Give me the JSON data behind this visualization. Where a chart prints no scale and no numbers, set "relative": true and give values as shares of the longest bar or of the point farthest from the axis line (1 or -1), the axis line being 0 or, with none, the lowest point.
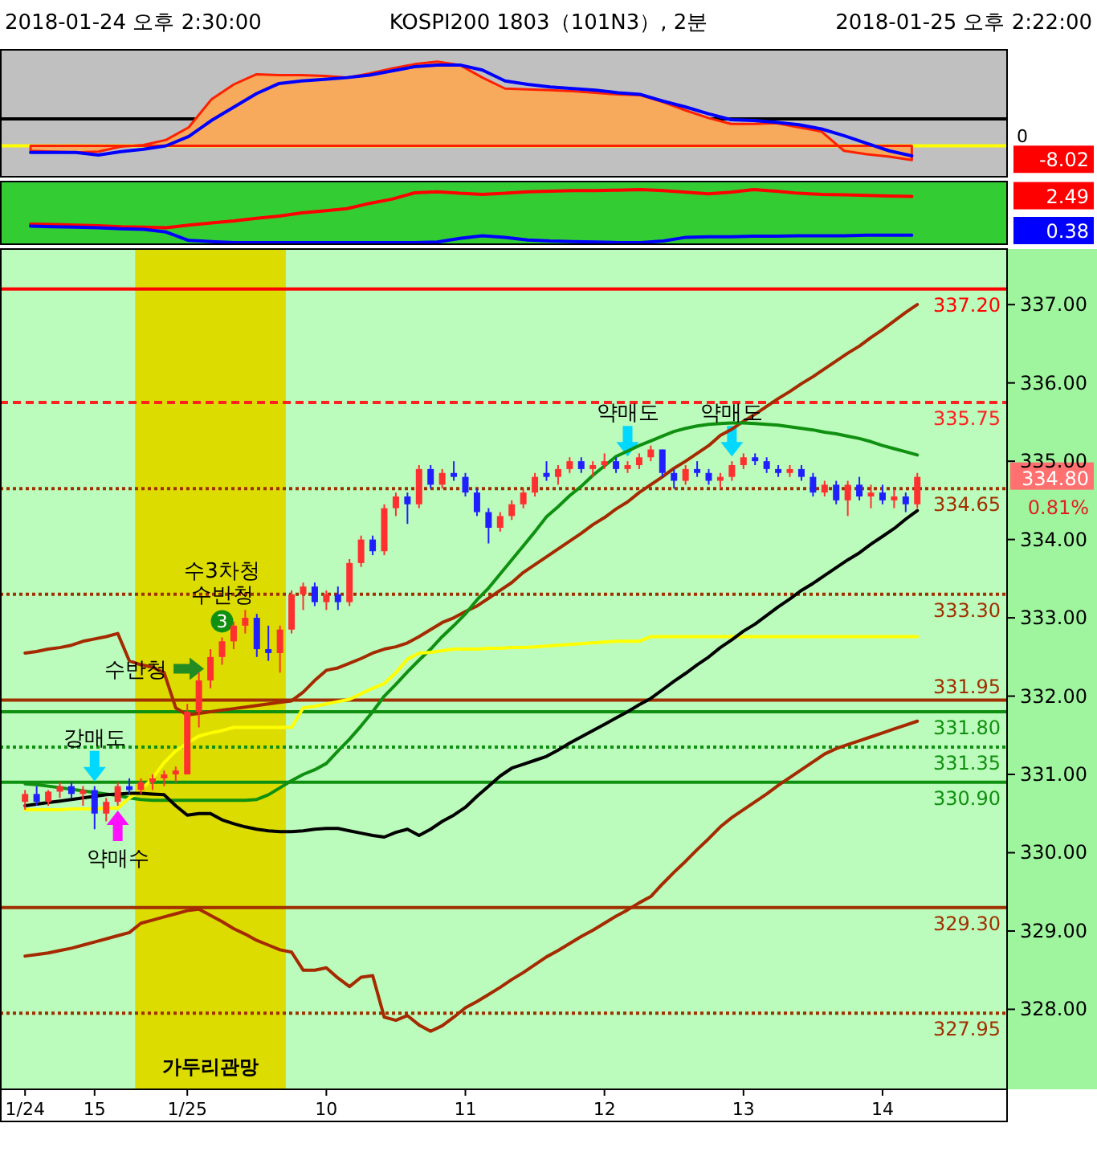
{
  "chart_data": [
    {
      "type": "line",
      "relative": true,
      "title": "KOSPI200 1803（101N3）, 2분",
      "annotations": [
        "2018-01-24 오후 2:30:00",
        "2018-01-25 오후 2:22:00",
        "-8.02"
      ],
      "categories": [
        null,
        null,
        null,
        null,
        null,
        null,
        null,
        null,
        null,
        null,
        null,
        null,
        null,
        null,
        null,
        null,
        null,
        null,
        null,
        null,
        null,
        null,
        null,
        null,
        null,
        null,
        null,
        null,
        null,
        null,
        null,
        null,
        null,
        null,
        null,
        null,
        null,
        null,
        null,
        null
      ],
      "series": [
        {
          "type": "area",
          "color": "#f7a95c",
          "values": [
            -0.06,
            -0.07,
            -0.08,
            -0.07,
            -0.01,
            0.01,
            0.07,
            0.22,
            0.55,
            0.73,
            0.85,
            0.84,
            0.84,
            0.83,
            0.81,
            0.86,
            0.92,
            0.97,
            1,
            0.96,
            0.81,
            0.68,
            0.67,
            0.66,
            0.65,
            0.63,
            0.61,
            0.6,
            0.52,
            0.42,
            0.33,
            0.26,
            0.26,
            0.27,
            0.22,
            0.17,
            -0.06,
            -0.1,
            -0.13,
            -0.17
          ]
        },
        {
          "color": "#0000ff",
          "values": [
            -0.08,
            -0.08,
            -0.08,
            -0.11,
            -0.07,
            -0.04,
            0,
            0.11,
            0.3,
            0.46,
            0.62,
            0.74,
            0.77,
            0.79,
            0.81,
            0.84,
            0.89,
            0.94,
            0.96,
            0.96,
            0.9,
            0.77,
            0.73,
            0.7,
            0.68,
            0.66,
            0.63,
            0.61,
            0.53,
            0.46,
            0.38,
            0.31,
            0.3,
            0.28,
            0.25,
            0.2,
            0.12,
            0.03,
            -0.06,
            -0.12
          ]
        }
      ],
      "ref_lines": [
        {
          "axis": "y",
          "value": 0,
          "label": "0",
          "color": "#ffff00"
        },
        {
          "axis": "y",
          "value": 0.32,
          "color": "#000000"
        }
      ]
    },
    {
      "type": "line",
      "relative": true,
      "annotations": [
        "2.49",
        "0.38"
      ],
      "categories": [
        null,
        null,
        null,
        null,
        null,
        null,
        null,
        null,
        null,
        null,
        null,
        null,
        null,
        null,
        null,
        null,
        null,
        null,
        null,
        null,
        null,
        null,
        null,
        null,
        null,
        null,
        null,
        null,
        null,
        null,
        null,
        null,
        null,
        null,
        null,
        null,
        null,
        null,
        null,
        null
      ],
      "series": [
        {
          "color": "#ff0000",
          "values": [
            0.35,
            0.34,
            0.33,
            0.32,
            0.3,
            0.29,
            0.28,
            0.33,
            0.37,
            0.41,
            0.46,
            0.5,
            0.56,
            0.6,
            0.64,
            0.74,
            0.82,
            0.94,
            0.96,
            0.93,
            0.91,
            0.93,
            0.96,
            0.97,
            0.98,
            0.98,
            0.99,
            1,
            0.98,
            0.95,
            0.92,
            0.95,
            1,
            0.97,
            0.93,
            0.91,
            0.9,
            0.89,
            0.88,
            0.87
          ]
        },
        {
          "color": "#0000ff",
          "values": [
            0.31,
            0.3,
            0.29,
            0.28,
            0.26,
            0.25,
            0.2,
            0.04,
            0.02,
            0,
            0,
            0,
            0,
            0,
            0,
            0,
            0,
            0,
            0.01,
            0.08,
            0.13,
            0.1,
            0.05,
            0.03,
            0.02,
            0.01,
            0,
            0,
            0.03,
            0.1,
            0.11,
            0.11,
            0.12,
            0.12,
            0.13,
            0.13,
            0.13,
            0.14,
            0.14,
            0.14
          ]
        }
      ]
    },
    {
      "type": "candlestick",
      "ylim": [
        327.04,
        337.71
      ],
      "categories": [
        "1/24",
        null,
        null,
        null,
        null,
        null,
        "15",
        null,
        null,
        null,
        null,
        null,
        null,
        null,
        "1/25",
        null,
        null,
        null,
        null,
        null,
        null,
        null,
        null,
        null,
        null,
        null,
        "10",
        null,
        null,
        null,
        null,
        null,
        null,
        null,
        null,
        null,
        null,
        null,
        "11",
        null,
        null,
        null,
        null,
        null,
        null,
        null,
        null,
        null,
        null,
        null,
        "12",
        null,
        null,
        null,
        null,
        null,
        null,
        null,
        null,
        null,
        null,
        null,
        "13",
        null,
        null,
        null,
        null,
        null,
        null,
        null,
        null,
        null,
        null,
        null,
        "14",
        null,
        null,
        null
      ],
      "yticks": [
        {
          "value": 328,
          "label": "328.00"
        },
        {
          "value": 329,
          "label": "329.00"
        },
        {
          "value": 330,
          "label": "330.00"
        },
        {
          "value": 331,
          "label": "331.00"
        },
        {
          "value": 332,
          "label": "332.00"
        },
        {
          "value": 333,
          "label": "333.00"
        },
        {
          "value": 334,
          "label": "334.00"
        },
        {
          "value": 335,
          "label": "335.00"
        },
        {
          "value": 336,
          "label": "336.00"
        },
        {
          "value": 337,
          "label": "337.00"
        }
      ],
      "ohlc": [
        [
          330.65,
          330.8,
          330.55,
          330.75
        ],
        [
          330.75,
          330.85,
          330.6,
          330.65
        ],
        [
          330.65,
          330.8,
          330.6,
          330.78
        ],
        [
          330.78,
          330.9,
          330.7,
          330.85
        ],
        [
          330.85,
          330.9,
          330.7,
          330.75
        ],
        [
          330.75,
          330.85,
          330.6,
          330.8
        ],
        [
          330.8,
          330.85,
          330.3,
          330.5
        ],
        [
          330.5,
          330.7,
          330.4,
          330.65
        ],
        [
          330.65,
          330.9,
          330.6,
          330.85
        ],
        [
          330.85,
          330.95,
          330.75,
          330.8
        ],
        [
          330.8,
          330.95,
          330.75,
          330.9
        ],
        [
          330.9,
          331,
          330.8,
          330.95
        ],
        [
          330.95,
          331.05,
          330.85,
          331
        ],
        [
          331,
          331.1,
          330.9,
          331.05
        ],
        [
          331,
          331.9,
          331,
          331.8
        ],
        [
          331.8,
          332.3,
          331.6,
          332.2
        ],
        [
          332.2,
          332.6,
          332.1,
          332.5
        ],
        [
          332.5,
          332.75,
          332.4,
          332.7
        ],
        [
          332.7,
          332.95,
          332.6,
          332.9
        ],
        [
          332.9,
          333.1,
          332.8,
          333
        ],
        [
          333,
          333.05,
          332.5,
          332.6
        ],
        [
          332.6,
          332.9,
          332.45,
          332.55
        ],
        [
          332.55,
          332.9,
          332.3,
          332.85
        ],
        [
          332.85,
          333.35,
          332.8,
          333.3
        ],
        [
          333.3,
          333.45,
          333.1,
          333.4
        ],
        [
          333.4,
          333.45,
          333.15,
          333.2
        ],
        [
          333.2,
          333.35,
          333.1,
          333.3
        ],
        [
          333.3,
          333.4,
          333.1,
          333.2
        ],
        [
          333.2,
          333.75,
          333.15,
          333.7
        ],
        [
          333.7,
          334.05,
          333.65,
          334
        ],
        [
          334,
          334.05,
          333.8,
          333.85
        ],
        [
          333.85,
          334.45,
          333.8,
          334.4
        ],
        [
          334.4,
          334.6,
          334.3,
          334.55
        ],
        [
          334.55,
          334.6,
          334.2,
          334.45
        ],
        [
          334.45,
          334.95,
          334.4,
          334.9
        ],
        [
          334.9,
          334.95,
          334.65,
          334.7
        ],
        [
          334.7,
          334.9,
          334.65,
          334.85
        ],
        [
          334.85,
          335,
          334.75,
          334.8
        ],
        [
          334.8,
          334.85,
          334.55,
          334.6
        ],
        [
          334.6,
          334.65,
          334.3,
          334.35
        ],
        [
          334.35,
          334.4,
          333.95,
          334.15
        ],
        [
          334.15,
          334.35,
          334.1,
          334.3
        ],
        [
          334.3,
          334.5,
          334.25,
          334.45
        ],
        [
          334.45,
          334.65,
          334.4,
          334.6
        ],
        [
          334.6,
          334.85,
          334.55,
          334.8
        ],
        [
          334.85,
          335,
          334.75,
          334.8
        ],
        [
          334.8,
          334.95,
          334.7,
          334.9
        ],
        [
          334.9,
          335.05,
          334.85,
          335
        ],
        [
          335,
          335.05,
          334.85,
          334.9
        ],
        [
          334.9,
          335,
          334.8,
          334.95
        ],
        [
          334.95,
          335.1,
          334.9,
          335
        ],
        [
          335,
          335.05,
          334.85,
          334.9
        ],
        [
          334.9,
          335,
          334.85,
          334.95
        ],
        [
          334.95,
          335.1,
          334.9,
          335.05
        ],
        [
          335.05,
          335.2,
          335,
          335.15
        ],
        [
          335.15,
          335.15,
          334.8,
          334.85
        ],
        [
          334.85,
          334.9,
          334.65,
          334.75
        ],
        [
          334.75,
          334.95,
          334.7,
          334.9
        ],
        [
          334.9,
          335,
          334.8,
          334.85
        ],
        [
          334.85,
          334.9,
          334.7,
          334.75
        ],
        [
          334.75,
          334.85,
          334.65,
          334.8
        ],
        [
          334.8,
          335,
          334.75,
          334.95
        ],
        [
          334.95,
          335.1,
          334.9,
          335.05
        ],
        [
          335.05,
          335.1,
          334.95,
          335
        ],
        [
          335,
          335.05,
          334.85,
          334.9
        ],
        [
          334.9,
          334.95,
          334.8,
          334.85
        ],
        [
          334.85,
          334.95,
          334.8,
          334.9
        ],
        [
          334.9,
          334.95,
          334.75,
          334.8
        ],
        [
          334.8,
          334.85,
          334.55,
          334.6
        ],
        [
          334.6,
          334.75,
          334.55,
          334.7
        ],
        [
          334.7,
          334.75,
          334.45,
          334.5
        ],
        [
          334.5,
          334.75,
          334.3,
          334.7
        ],
        [
          334.7,
          334.8,
          334.5,
          334.55
        ],
        [
          334.55,
          334.7,
          334.4,
          334.6
        ],
        [
          334.6,
          334.7,
          334.45,
          334.5
        ],
        [
          334.5,
          334.65,
          334.4,
          334.55
        ],
        [
          334.55,
          334.6,
          334.35,
          334.45
        ],
        [
          334.45,
          334.85,
          334.4,
          334.8
        ]
      ],
      "series": [
        {
          "type": "line",
          "color": "#a52a00",
          "values": [
            332.55,
            332.57,
            332.6,
            332.62,
            332.65,
            332.7,
            332.73,
            332.76,
            332.8,
            332.45,
            332.4,
            332.37,
            332.3,
            331.85,
            331.76,
            331.78,
            331.8,
            331.82,
            331.84,
            331.86,
            331.88,
            331.9,
            331.92,
            331.94,
            332.05,
            332.2,
            332.33,
            332.36,
            332.42,
            332.48,
            332.55,
            332.6,
            332.63,
            332.68,
            332.76,
            332.85,
            332.94,
            333,
            333.08,
            333.15,
            333.25,
            333.35,
            333.45,
            333.58,
            333.68,
            333.78,
            333.88,
            333.98,
            334.08,
            334.19,
            334.28,
            334.39,
            334.48,
            334.6,
            334.7,
            334.8,
            334.91,
            335,
            335.1,
            335.2,
            335.33,
            335.41,
            335.51,
            335.6,
            335.7,
            335.8,
            335.89,
            335.99,
            336.08,
            336.18,
            336.28,
            336.38,
            336.47,
            336.58,
            336.68,
            336.79,
            336.9,
            337
          ]
        },
        {
          "type": "line",
          "color": "#a52a00",
          "values": [
            328.68,
            328.7,
            328.72,
            328.75,
            328.78,
            328.82,
            328.86,
            328.9,
            328.94,
            328.98,
            329.1,
            329.14,
            329.18,
            329.22,
            329.26,
            329.28,
            329.2,
            329.12,
            329.03,
            328.96,
            328.88,
            328.82,
            328.76,
            328.73,
            328.5,
            328.5,
            328.53,
            328.4,
            328.29,
            328.41,
            328.43,
            327.9,
            327.86,
            327.92,
            327.8,
            327.72,
            327.79,
            327.9,
            328.02,
            328.1,
            328.19,
            328.28,
            328.38,
            328.47,
            328.57,
            328.67,
            328.75,
            328.84,
            328.93,
            329.01,
            329.1,
            329.19,
            329.27,
            329.36,
            329.44,
            329.6,
            329.75,
            329.89,
            330.04,
            330.18,
            330.33,
            330.45,
            330.55,
            330.65,
            330.75,
            330.86,
            330.96,
            331.06,
            331.16,
            331.26,
            331.33,
            331.38,
            331.43,
            331.48,
            331.53,
            331.58,
            331.63,
            331.68
          ]
        },
        {
          "type": "line",
          "color": "#109010",
          "values": [
            330.88,
            330.87,
            330.85,
            330.83,
            330.81,
            330.79,
            330.77,
            330.75,
            330.73,
            330.7,
            330.68,
            330.67,
            330.67,
            330.67,
            330.67,
            330.67,
            330.67,
            330.67,
            330.67,
            330.67,
            330.68,
            330.74,
            330.83,
            330.92,
            331,
            331.06,
            331.14,
            331.3,
            331.45,
            331.62,
            331.8,
            332,
            332.15,
            332.31,
            332.46,
            332.6,
            332.76,
            332.9,
            333.05,
            333.23,
            333.38,
            333.56,
            333.74,
            333.92,
            334.1,
            334.29,
            334.42,
            334.56,
            334.68,
            334.82,
            334.94,
            335.06,
            335.13,
            335.2,
            335.26,
            335.32,
            335.38,
            335.42,
            335.45,
            335.47,
            335.48,
            335.49,
            335.49,
            335.48,
            335.47,
            335.46,
            335.44,
            335.42,
            335.4,
            335.37,
            335.35,
            335.32,
            335.29,
            335.25,
            335.2,
            335.16,
            335.12,
            335.08
          ]
        },
        {
          "type": "line",
          "color": "#ffff00",
          "values": [
            330.55,
            330.55,
            330.55,
            330.55,
            330.56,
            330.56,
            330.56,
            330.57,
            330.57,
            330.7,
            330.8,
            330.95,
            331.15,
            331.3,
            331.4,
            331.49,
            331.53,
            331.56,
            331.6,
            331.6,
            331.6,
            331.6,
            331.6,
            331.6,
            331.85,
            331.87,
            331.9,
            331.93,
            331.96,
            332.03,
            332.1,
            332.16,
            332.3,
            332.47,
            332.55,
            332.56,
            332.58,
            332.6,
            332.6,
            332.6,
            332.61,
            332.61,
            332.62,
            332.62,
            332.63,
            332.64,
            332.65,
            332.66,
            332.67,
            332.68,
            332.69,
            332.7,
            332.7,
            332.7,
            332.76,
            332.76,
            332.76,
            332.76,
            332.76,
            332.76,
            332.76,
            332.76,
            332.76,
            332.76,
            332.76,
            332.76,
            332.76,
            332.76,
            332.76,
            332.76,
            332.76,
            332.76,
            332.76,
            332.76,
            332.76,
            332.76,
            332.76,
            332.76
          ]
        },
        {
          "type": "line",
          "color": "#000000",
          "values": [
            330.6,
            330.62,
            330.64,
            330.66,
            330.68,
            330.7,
            330.72,
            330.74,
            330.75,
            330.76,
            330.76,
            330.75,
            330.74,
            330.6,
            330.48,
            330.5,
            330.5,
            330.42,
            330.37,
            330.33,
            330.3,
            330.28,
            330.27,
            330.27,
            330.28,
            330.3,
            330.31,
            330.31,
            330.28,
            330.25,
            330.22,
            330.2,
            330.26,
            330.3,
            330.22,
            330.3,
            330.4,
            330.48,
            330.58,
            330.72,
            330.85,
            330.98,
            331.08,
            331.13,
            331.18,
            331.23,
            331.31,
            331.4,
            331.48,
            331.56,
            331.64,
            331.72,
            331.8,
            331.89,
            331.97,
            332.08,
            332.19,
            332.29,
            332.4,
            332.5,
            332.62,
            332.72,
            332.83,
            332.92,
            333.03,
            333.14,
            333.24,
            333.35,
            333.44,
            333.54,
            333.64,
            333.74,
            333.83,
            333.94,
            334.04,
            334.14,
            334.26,
            334.37
          ]
        }
      ],
      "ref_lines": [
        {
          "axis": "y",
          "value": 337.2,
          "label": "337.20",
          "color": "#ff0000",
          "line_style": "solid"
        },
        {
          "axis": "y",
          "value": 335.75,
          "label": "335.75",
          "color": "#ff2020",
          "line_style": "dashed"
        },
        {
          "axis": "y",
          "value": 334.65,
          "label": "334.65",
          "color": "#a03000",
          "line_style": "dotted"
        },
        {
          "axis": "y",
          "value": 333.3,
          "label": "333.30",
          "color": "#a03000",
          "line_style": "dotted"
        },
        {
          "axis": "y",
          "value": 331.95,
          "label": "331.95",
          "color": "#a03000",
          "line_style": "solid"
        },
        {
          "axis": "y",
          "value": 331.8,
          "label": "331.80",
          "color": "#109010",
          "line_style": "solid"
        },
        {
          "axis": "y",
          "value": 331.35,
          "label": "331.35",
          "color": "#109010",
          "line_style": "dotted"
        },
        {
          "axis": "y",
          "value": 330.9,
          "label": "330.90",
          "color": "#109010",
          "line_style": "solid"
        },
        {
          "axis": "y",
          "value": 329.3,
          "label": "329.30",
          "color": "#a03000",
          "line_style": "solid"
        },
        {
          "axis": "y",
          "value": 327.95,
          "label": "327.95",
          "color": "#a03000",
          "line_style": "dotted"
        }
      ],
      "annotations": [
        "334.80",
        "0.81%",
        "수3차청",
        "수반청",
        "3",
        "강매도",
        "약매수",
        "수반청",
        "약매도",
        "약매도",
        "가두리관망"
      ]
    }
  ]
}
